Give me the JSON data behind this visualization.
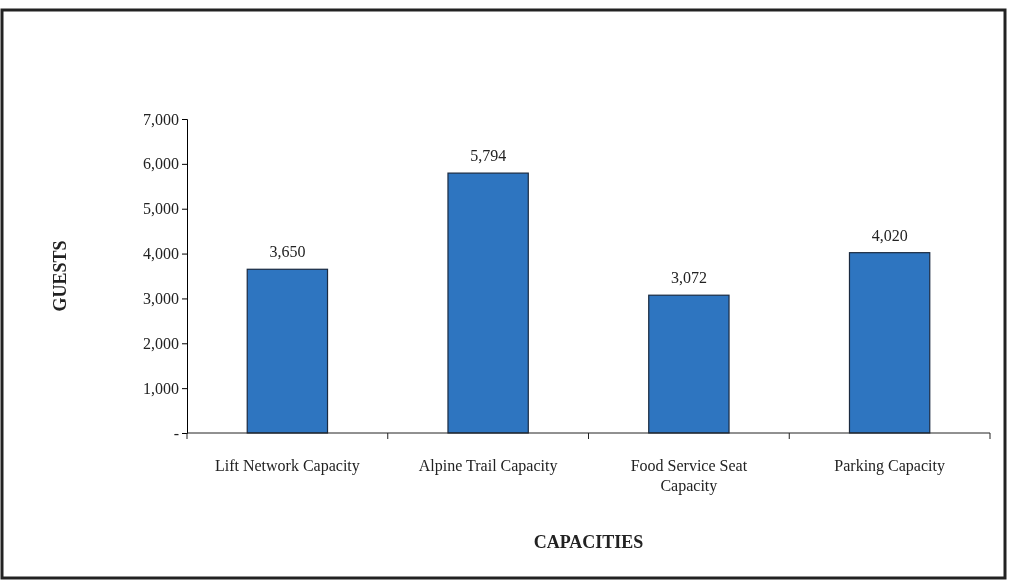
{
  "chart_data": {
    "type": "bar",
    "xlabel": "CAPACITIES",
    "ylabel": "GUESTS",
    "categories": [
      "Lift Network Capacity",
      "Alpine Trail Capacity",
      "Food Service Seat Capacity",
      "Parking Capacity"
    ],
    "values": [
      3650,
      5794,
      3072,
      4020
    ],
    "color": "#2e75c0",
    "ylim": [
      0,
      7000
    ],
    "yticks": [
      {
        "value": 0,
        "label": "-"
      },
      {
        "value": 1000,
        "label": "1,000"
      },
      {
        "value": 2000,
        "label": "2,000"
      },
      {
        "value": 3000,
        "label": "3,000"
      },
      {
        "value": 4000,
        "label": "4,000"
      },
      {
        "value": 5000,
        "label": "5,000"
      },
      {
        "value": 6000,
        "label": "6,000"
      },
      {
        "value": 7000,
        "label": "7,000"
      }
    ],
    "value_labels": [
      "3,650",
      "5,794",
      "3,072",
      "4,020"
    ],
    "grid": false
  }
}
